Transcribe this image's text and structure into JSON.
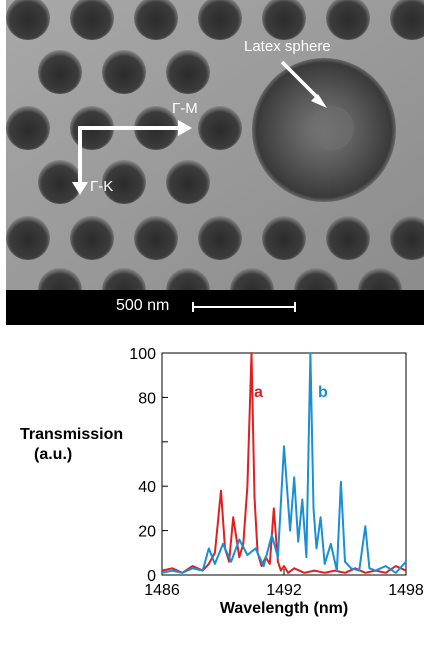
{
  "sem_image": {
    "annotation_sphere": "Latex sphere",
    "annotation_gm": "Γ-M",
    "annotation_gk": "Γ-K",
    "scale_label": "500 nm"
  },
  "chart_data": {
    "type": "line",
    "xlabel": "Wavelength (nm)",
    "ylabel_line1": "Transmission",
    "ylabel_line2": "(a.u.)",
    "xlim": [
      1486,
      1498
    ],
    "ylim": [
      0,
      100
    ],
    "x_ticks": [
      1486,
      1492,
      1498
    ],
    "y_ticks": [
      0,
      20,
      40,
      60,
      80,
      100
    ],
    "y_tick_labels": [
      "0",
      "20",
      "40",
      "",
      "80",
      "100"
    ],
    "series": [
      {
        "name": "a",
        "color": "#e02020",
        "x": [
          1486,
          1486.5,
          1487,
          1487.5,
          1488,
          1488.3,
          1488.6,
          1488.9,
          1489.1,
          1489.3,
          1489.5,
          1489.8,
          1490.0,
          1490.2,
          1490.4,
          1490.55,
          1490.7,
          1490.9,
          1491.1,
          1491.3,
          1491.5,
          1491.7,
          1491.85,
          1492.0,
          1492.2,
          1492.5,
          1493,
          1493.5,
          1494,
          1494.5,
          1495,
          1495.5,
          1496,
          1496.5,
          1497,
          1497.5,
          1498
        ],
        "y": [
          2,
          3,
          1,
          4,
          2,
          5,
          10,
          38,
          12,
          6,
          26,
          8,
          14,
          40,
          100,
          35,
          10,
          4,
          8,
          5,
          30,
          6,
          2,
          4,
          1,
          3,
          1,
          2,
          1,
          2,
          1,
          3,
          1,
          2,
          1,
          4,
          2
        ]
      },
      {
        "name": "b",
        "color": "#1a8fd6",
        "x": [
          1486,
          1486.5,
          1487,
          1487.5,
          1488,
          1488.3,
          1488.6,
          1489.0,
          1489.4,
          1489.8,
          1490.2,
          1490.6,
          1491.0,
          1491.4,
          1491.7,
          1492.0,
          1492.3,
          1492.5,
          1492.7,
          1492.9,
          1493.1,
          1493.3,
          1493.45,
          1493.6,
          1493.8,
          1494.0,
          1494.3,
          1494.6,
          1494.8,
          1495.0,
          1495.3,
          1495.7,
          1496.0,
          1496.2,
          1496.5,
          1497,
          1497.5,
          1498
        ],
        "y": [
          1,
          2,
          1,
          3,
          2,
          12,
          5,
          14,
          6,
          16,
          9,
          12,
          4,
          18,
          8,
          58,
          20,
          44,
          15,
          34,
          8,
          100,
          30,
          12,
          26,
          5,
          14,
          2,
          42,
          6,
          3,
          2,
          22,
          3,
          2,
          4,
          1,
          6
        ]
      }
    ]
  }
}
